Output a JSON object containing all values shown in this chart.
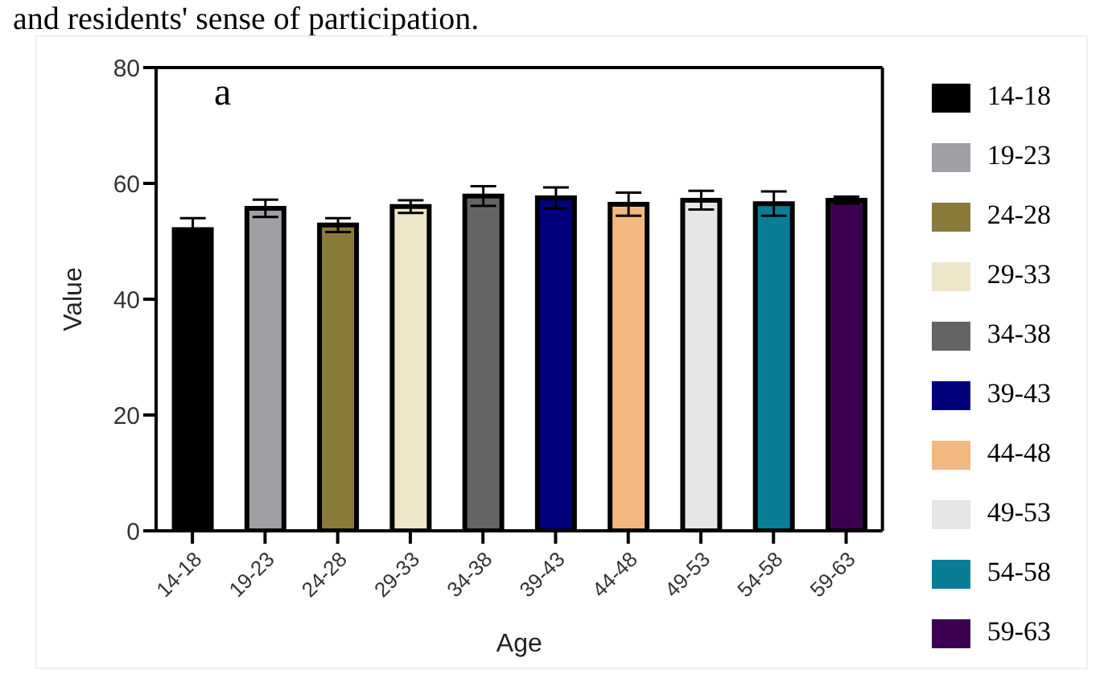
{
  "chart_data": {
    "type": "bar",
    "xlabel": "Age",
    "ylabel": "Value",
    "annotations": [
      "and residents' sense of participation.",
      "a"
    ],
    "categories": [
      "14-18",
      "19-23",
      "24-28",
      "29-33",
      "34-38",
      "39-43",
      "44-48",
      "49-53",
      "54-58",
      "59-63"
    ],
    "series": [
      {
        "name": "14-18",
        "color": "#000000",
        "values": [
          52.0,
          null,
          null,
          null,
          null,
          null,
          null,
          null,
          null,
          null
        ],
        "errors": [
          2.0,
          null,
          null,
          null,
          null,
          null,
          null,
          null,
          null,
          null
        ]
      },
      {
        "name": "19-23",
        "color": "#a0a0a4",
        "values": [
          null,
          55.7,
          null,
          null,
          null,
          null,
          null,
          null,
          null,
          null
        ],
        "errors": [
          null,
          1.5,
          null,
          null,
          null,
          null,
          null,
          null,
          null,
          null
        ]
      },
      {
        "name": "24-28",
        "color": "#8a7a3a",
        "values": [
          null,
          null,
          52.8,
          null,
          null,
          null,
          null,
          null,
          null,
          null
        ],
        "errors": [
          null,
          null,
          1.2,
          null,
          null,
          null,
          null,
          null,
          null,
          null
        ]
      },
      {
        "name": "29-33",
        "color": "#ede6c8",
        "values": [
          null,
          null,
          null,
          56.0,
          null,
          null,
          null,
          null,
          null,
          null
        ],
        "errors": [
          null,
          null,
          null,
          1.1,
          null,
          null,
          null,
          null,
          null,
          null
        ]
      },
      {
        "name": "34-38",
        "color": "#646464",
        "values": [
          null,
          null,
          null,
          null,
          57.8,
          null,
          null,
          null,
          null,
          null
        ],
        "errors": [
          null,
          null,
          null,
          null,
          1.7,
          null,
          null,
          null,
          null,
          null
        ]
      },
      {
        "name": "39-43",
        "color": "#00007a",
        "values": [
          null,
          null,
          null,
          null,
          null,
          57.5,
          null,
          null,
          null,
          null
        ],
        "errors": [
          null,
          null,
          null,
          null,
          null,
          1.8,
          null,
          null,
          null,
          null
        ]
      },
      {
        "name": "44-48",
        "color": "#f2b880",
        "values": [
          null,
          null,
          null,
          null,
          null,
          null,
          56.4,
          null,
          null,
          null
        ],
        "errors": [
          null,
          null,
          null,
          null,
          null,
          null,
          2.0,
          null,
          null,
          null
        ]
      },
      {
        "name": "49-53",
        "color": "#e6e6e6",
        "values": [
          null,
          null,
          null,
          null,
          null,
          null,
          null,
          57.1,
          null,
          null
        ],
        "errors": [
          null,
          null,
          null,
          null,
          null,
          null,
          null,
          1.6,
          null,
          null
        ]
      },
      {
        "name": "54-58",
        "color": "#0a7d96",
        "values": [
          null,
          null,
          null,
          null,
          null,
          null,
          null,
          null,
          56.5,
          null
        ],
        "errors": [
          null,
          null,
          null,
          null,
          null,
          null,
          null,
          null,
          2.1,
          null
        ]
      },
      {
        "name": "59-63",
        "color": "#3d0050",
        "values": [
          null,
          null,
          null,
          null,
          null,
          null,
          null,
          null,
          null,
          57.1
        ],
        "errors": [
          null,
          null,
          null,
          null,
          null,
          null,
          null,
          null,
          null,
          0.6
        ]
      }
    ],
    "stacked": true,
    "ylim": [
      0,
      80
    ],
    "yticks": [
      0,
      20,
      40,
      60,
      80
    ],
    "grid": false,
    "legend": "right"
  }
}
